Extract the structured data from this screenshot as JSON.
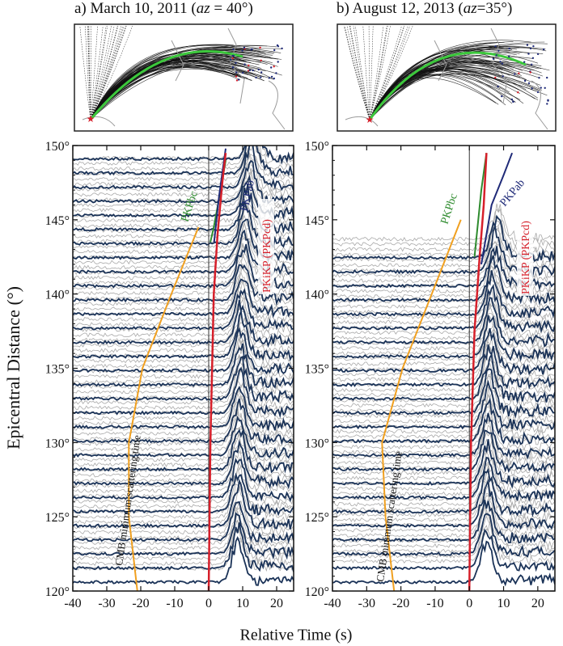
{
  "figure": {
    "ylabel": "Epicentral Distance (°)",
    "xlabel": "Relative Time (s)",
    "x_ticks": [
      "-40",
      "-30",
      "-20",
      "-10",
      "0",
      "10",
      "20"
    ],
    "y_ticks": [
      "150°",
      "145°",
      "140°",
      "135°",
      "130°",
      "125°",
      "120°"
    ],
    "colors": {
      "background_traces": "#a9a9a9",
      "selected_traces": "#1b3358",
      "pkikp_curve": "#d61f2a",
      "pkpbc_curve": "#2e8b2e",
      "pkpab_curve": "#1f2a78",
      "cmb_curve": "#f0a020",
      "map_rays": "#111111",
      "map_great_circle": "#3cc83c"
    }
  },
  "panels": [
    {
      "title_prefix": "a) March 10, 2011 (",
      "title_az": "az",
      "title_suffix": " = 40°)",
      "label_pkpbc": "PKPbc",
      "label_pkpab": "PKPab",
      "label_pkikp": "PKiKP (PKPcd)",
      "label_cmb": "CMB minimum scattering time"
    },
    {
      "title_prefix": "b) August 12, 2013 (",
      "title_az": "az",
      "title_suffix": "=35°)",
      "label_pkpbc": "PKPbc",
      "label_pkpab": "PKPab",
      "label_pkikp": "PKiKP (PKPcd)",
      "label_cmb": "CMB minimum scattering time"
    }
  ],
  "chart_data": [
    {
      "type": "line",
      "title": "a) March 10, 2011 (az = 40°)",
      "xlabel": "Relative Time (s)",
      "ylabel": "Epicentral Distance (°)",
      "xlim": [
        -40,
        25
      ],
      "ylim": [
        120,
        150
      ],
      "series": [
        {
          "name": "PKiKP (PKPcd)",
          "x": [
            0,
            0.5,
            1.5,
            2.6,
            4.0,
            5.0
          ],
          "y": [
            120,
            130,
            140,
            144,
            147.5,
            149.5
          ]
        },
        {
          "name": "PKPbc",
          "x": [
            0.5,
            1.5,
            3.5,
            5.0
          ],
          "y": [
            143.5,
            144.5,
            147,
            149
          ]
        },
        {
          "name": "PKPab",
          "x": [
            1.6,
            3.0,
            5.0
          ],
          "y": [
            143.5,
            146.5,
            149.8
          ]
        },
        {
          "name": "CMB minimum scattering time",
          "x": [
            -21,
            -23.5,
            -23.5,
            -19.5,
            -11,
            -3
          ],
          "y": [
            120,
            125,
            130,
            135,
            140,
            144.5
          ]
        }
      ]
    },
    {
      "type": "line",
      "title": "b) August 12, 2013 (az=35°)",
      "xlabel": "Relative Time (s)",
      "ylabel": "Epicentral Distance (°)",
      "xlim": [
        -40,
        25
      ],
      "ylim": [
        120,
        150
      ],
      "series": [
        {
          "name": "PKiKP (PKPcd)",
          "x": [
            0,
            0.5,
            1.5,
            3.0,
            4.2,
            5.0
          ],
          "y": [
            120,
            130,
            137.5,
            142.5,
            146,
            149.5
          ]
        },
        {
          "name": "PKPbc",
          "x": [
            1.5,
            3.5,
            5.0
          ],
          "y": [
            142.5,
            147,
            149.5
          ]
        },
        {
          "name": "PKPab",
          "x": [
            3.5,
            6.5,
            10.0,
            12.5
          ],
          "y": [
            142,
            146,
            148,
            149.5
          ]
        },
        {
          "name": "CMB minimum scattering time",
          "x": [
            -22,
            -24.5,
            -25.5,
            -19.5,
            -11,
            -2.5
          ],
          "y": [
            120,
            125,
            130,
            135,
            140,
            145
          ]
        }
      ]
    }
  ]
}
